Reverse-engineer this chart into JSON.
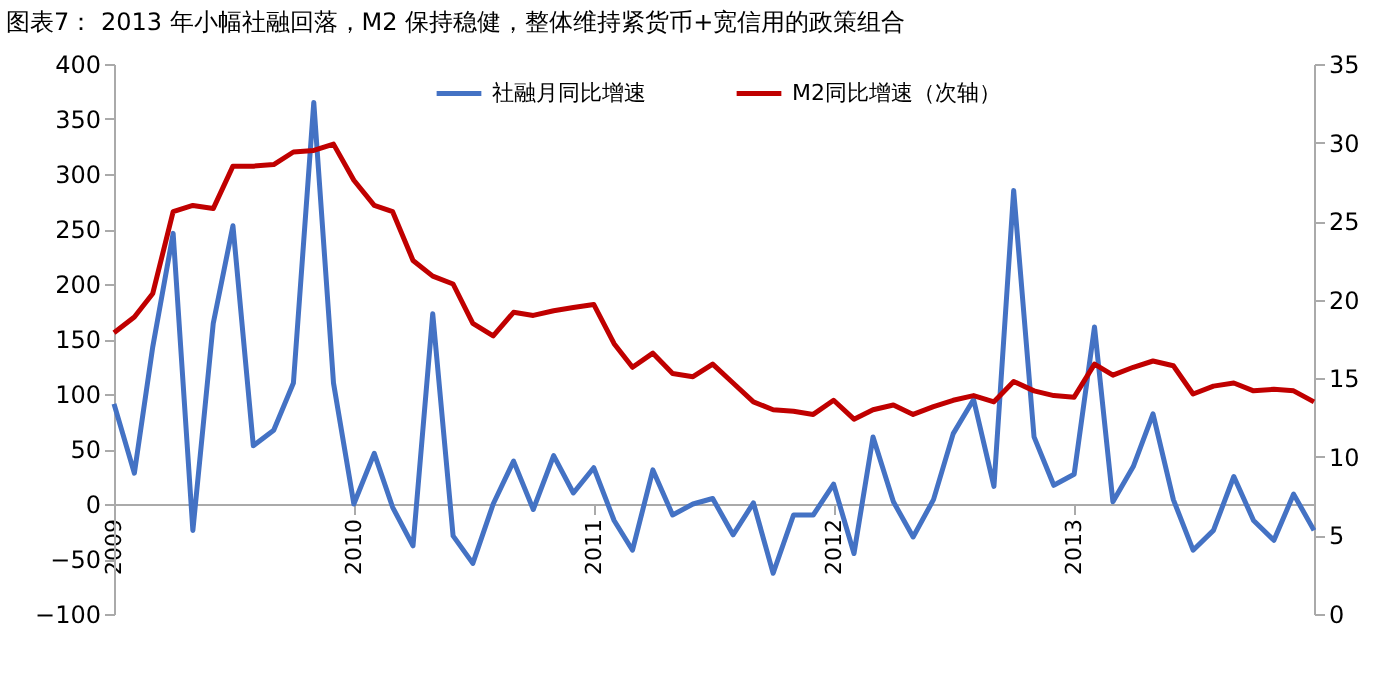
{
  "chart_data": {
    "type": "line",
    "title": "图表7： 2013 年小幅社融回落，M2 保持稳健，整体维持紧货币+宽信用的政策组合",
    "x": [
      "2009-01",
      "2009-02",
      "2009-03",
      "2009-04",
      "2009-05",
      "2009-06",
      "2009-07",
      "2009-08",
      "2009-09",
      "2009-10",
      "2009-11",
      "2009-12",
      "2010-01",
      "2010-02",
      "2010-03",
      "2010-04",
      "2010-05",
      "2010-06",
      "2010-07",
      "2010-08",
      "2010-09",
      "2010-10",
      "2010-11",
      "2010-12",
      "2011-01",
      "2011-02",
      "2011-03",
      "2011-04",
      "2011-05",
      "2011-06",
      "2011-07",
      "2011-08",
      "2011-09",
      "2011-10",
      "2011-11",
      "2011-12",
      "2012-01",
      "2012-02",
      "2012-03",
      "2012-04",
      "2012-05",
      "2012-06",
      "2012-07",
      "2012-08",
      "2012-09",
      "2012-10",
      "2012-11",
      "2012-12",
      "2013-01",
      "2013-02",
      "2013-03",
      "2013-04",
      "2013-05",
      "2013-06",
      "2013-07",
      "2013-08",
      "2013-09",
      "2013-10",
      "2013-11",
      "2013-12",
      "2014-01"
    ],
    "series": [
      {
        "name": "社融月同比增速",
        "color": "#4472c4",
        "values": [
          91,
          28,
          143,
          246,
          -24,
          164,
          253,
          53,
          67,
          110,
          365,
          110,
          0,
          46,
          -3,
          -38,
          173,
          -29,
          -54,
          0,
          39,
          -5,
          44,
          10,
          33,
          -15,
          -42,
          31,
          -10,
          0,
          5,
          -28,
          1,
          -63,
          -10,
          -10,
          18,
          -45,
          61,
          2,
          -30,
          4,
          64,
          95,
          16,
          285,
          61,
          17,
          27,
          161,
          2,
          34,
          82,
          4,
          -42,
          -24,
          25,
          -15,
          -33,
          9,
          -24
        ]
      },
      {
        "name": "M2同比增速（次轴）",
        "color": "#c00000",
        "axis": "y2",
        "values": [
          17.9,
          18.9,
          20.4,
          25.6,
          26.0,
          25.8,
          28.5,
          28.5,
          28.6,
          29.4,
          29.5,
          29.9,
          27.6,
          26.0,
          25.6,
          22.5,
          21.5,
          21.0,
          18.5,
          17.7,
          19.2,
          19.0,
          19.3,
          19.5,
          19.7,
          17.2,
          15.7,
          16.6,
          15.3,
          15.1,
          15.9,
          14.7,
          13.5,
          13.0,
          12.9,
          12.7,
          13.6,
          12.4,
          13.0,
          13.3,
          12.7,
          13.2,
          13.6,
          13.9,
          13.5,
          14.8,
          14.2,
          13.9,
          13.8,
          15.9,
          15.2,
          15.7,
          16.1,
          15.8,
          14.0,
          14.5,
          14.7,
          14.2,
          14.3,
          14.2,
          13.5
        ]
      }
    ],
    "xlim": [
      "2009-01",
      "2014-01"
    ],
    "xticks": [
      {
        "value": "2009-01",
        "label": "2009"
      },
      {
        "value": "2010-01",
        "label": "2010"
      },
      {
        "value": "2011-01",
        "label": "2011"
      },
      {
        "value": "2012-01",
        "label": "2012"
      },
      {
        "value": "2013-01",
        "label": "2013"
      }
    ],
    "ylim": [
      -100,
      400
    ],
    "yticks": [
      -100,
      -50,
      0,
      50,
      100,
      150,
      200,
      250,
      300,
      350,
      400
    ],
    "y2lim": [
      0,
      35
    ],
    "y2ticks": [
      0,
      5,
      10,
      15,
      20,
      25,
      30,
      35
    ],
    "grid": false,
    "legend": "top",
    "marker": "none",
    "line_style": "solid"
  }
}
